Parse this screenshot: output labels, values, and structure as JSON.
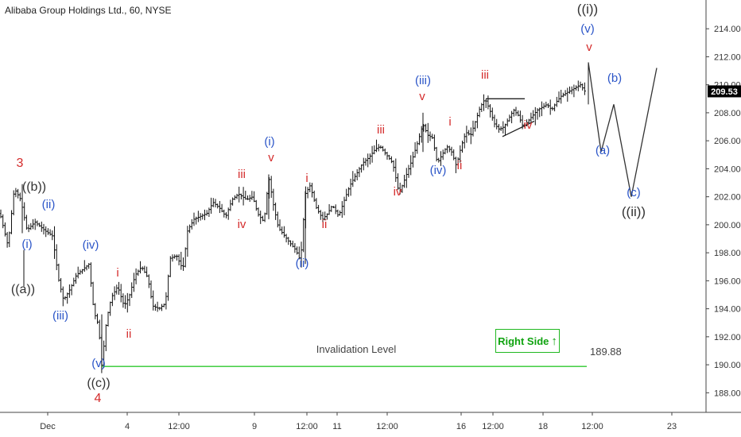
{
  "title": "Alibaba Group Holdings Ltd., 60, NYSE",
  "right_side_label": "Right Side",
  "right_side_arrow": "↑",
  "invalidation_label": "Invalidation Level",
  "invalidation_value_label": "189.88",
  "current_price_label": "209.53",
  "colors": {
    "price": "#000000",
    "invalidation": "#2ec82e",
    "red_labels": "#d42b2b",
    "blue_labels": "#2b55c8",
    "black_labels": "#333333",
    "badge": "#000000",
    "right_side": "#0fa30f"
  },
  "chart_data": {
    "type": "ohlc",
    "y_ticks": [
      "188.00",
      "190.00",
      "192.00",
      "194.00",
      "196.00",
      "198.00",
      "200.00",
      "202.00",
      "204.00",
      "206.00",
      "208.00",
      "210.00",
      "212.00",
      "214.00"
    ],
    "ylim": [
      186.6,
      215.6
    ],
    "x_ticks": [
      "Dec",
      "4",
      "12:00",
      "9",
      "12:00",
      "11",
      "12:00",
      "16",
      "12:00",
      "18",
      "12:00",
      "23"
    ],
    "invalidation_level": 189.88,
    "current_price": 209.53,
    "price_path": [
      [
        0,
        200.8
      ],
      [
        10,
        198.5
      ],
      [
        18,
        202.6
      ],
      [
        26,
        201.8
      ],
      [
        34,
        199.6
      ],
      [
        44,
        200.2
      ],
      [
        56,
        199.6
      ],
      [
        66,
        199.2
      ],
      [
        74,
        196
      ],
      [
        80,
        194.6
      ],
      [
        88,
        195.4
      ],
      [
        96,
        196.4
      ],
      [
        104,
        196.8
      ],
      [
        112,
        197.2
      ],
      [
        118,
        193.8
      ],
      [
        124,
        192.8
      ],
      [
        128,
        189.9
      ],
      [
        134,
        193.2
      ],
      [
        140,
        194.8
      ],
      [
        148,
        195.6
      ],
      [
        156,
        194.2
      ],
      [
        162,
        194.8
      ],
      [
        170,
        196.4
      ],
      [
        178,
        197
      ],
      [
        186,
        196.2
      ],
      [
        192,
        194.2
      ],
      [
        200,
        194
      ],
      [
        208,
        194.4
      ],
      [
        214,
        197.6
      ],
      [
        222,
        197.8
      ],
      [
        230,
        196.8
      ],
      [
        236,
        199.6
      ],
      [
        244,
        200.4
      ],
      [
        252,
        200.6
      ],
      [
        260,
        200.8
      ],
      [
        268,
        201.6
      ],
      [
        276,
        201.2
      ],
      [
        284,
        200.6
      ],
      [
        292,
        201.8
      ],
      [
        300,
        202.2
      ],
      [
        310,
        201.8
      ],
      [
        318,
        202
      ],
      [
        324,
        200.8
      ],
      [
        332,
        200.2
      ],
      [
        338,
        203.4
      ],
      [
        344,
        201.4
      ],
      [
        350,
        199.8
      ],
      [
        358,
        199.2
      ],
      [
        366,
        198.6
      ],
      [
        372,
        198.2
      ],
      [
        378,
        197.4
      ],
      [
        384,
        202.2
      ],
      [
        390,
        202.8
      ],
      [
        398,
        201.2
      ],
      [
        406,
        200.4
      ],
      [
        412,
        200.8
      ],
      [
        418,
        201.4
      ],
      [
        426,
        200.6
      ],
      [
        432,
        201.6
      ],
      [
        440,
        202.8
      ],
      [
        448,
        203.6
      ],
      [
        456,
        204.4
      ],
      [
        464,
        204.8
      ],
      [
        472,
        205.4
      ],
      [
        478,
        205.6
      ],
      [
        486,
        205
      ],
      [
        494,
        204.4
      ],
      [
        502,
        202.2
      ],
      [
        510,
        203.4
      ],
      [
        518,
        204.6
      ],
      [
        526,
        206
      ],
      [
        532,
        207.2
      ],
      [
        538,
        206.4
      ],
      [
        544,
        206.2
      ],
      [
        550,
        204.4
      ],
      [
        556,
        205
      ],
      [
        562,
        205.6
      ],
      [
        568,
        205.2
      ],
      [
        574,
        204.2
      ],
      [
        580,
        205.6
      ],
      [
        586,
        206.6
      ],
      [
        592,
        206.4
      ],
      [
        598,
        207.4
      ],
      [
        604,
        208.4
      ],
      [
        610,
        209
      ],
      [
        616,
        208.2
      ],
      [
        622,
        207.2
      ],
      [
        628,
        206.8
      ],
      [
        634,
        207
      ],
      [
        640,
        207.6
      ],
      [
        646,
        208.2
      ],
      [
        652,
        207.8
      ],
      [
        658,
        207
      ],
      [
        664,
        207.4
      ],
      [
        670,
        207.8
      ],
      [
        676,
        208.2
      ],
      [
        682,
        208.4
      ],
      [
        688,
        208.6
      ],
      [
        694,
        208.2
      ],
      [
        700,
        208.8
      ],
      [
        706,
        209.2
      ],
      [
        712,
        209.4
      ],
      [
        718,
        209.6
      ],
      [
        724,
        209.8
      ],
      [
        730,
        210
      ],
      [
        736,
        209.5
      ]
    ]
  },
  "wave_labels": [
    {
      "text": "3",
      "color": "red"
    },
    {
      "text": "((b))",
      "color": "black"
    },
    {
      "text": "(ii)",
      "color": "blue"
    },
    {
      "text": "(i)",
      "color": "blue"
    },
    {
      "text": "((a))",
      "color": "black"
    },
    {
      "text": "(iii)",
      "color": "blue"
    },
    {
      "text": "(iv)",
      "color": "blue"
    },
    {
      "text": "i",
      "color": "red"
    },
    {
      "text": "ii",
      "color": "red"
    },
    {
      "text": "(v)",
      "color": "blue"
    },
    {
      "text": "((c))",
      "color": "black"
    },
    {
      "text": "4",
      "color": "red"
    },
    {
      "text": "iii",
      "color": "red"
    },
    {
      "text": "iv",
      "color": "red"
    },
    {
      "text": "(i)",
      "color": "blue"
    },
    {
      "text": "v",
      "color": "red"
    },
    {
      "text": "i",
      "color": "red"
    },
    {
      "text": "ii",
      "color": "red"
    },
    {
      "text": "(ii)",
      "color": "blue"
    },
    {
      "text": "iii",
      "color": "red"
    },
    {
      "text": "iv",
      "color": "red"
    },
    {
      "text": "(iii)",
      "color": "blue"
    },
    {
      "text": "v",
      "color": "red"
    },
    {
      "text": "i",
      "color": "red"
    },
    {
      "text": "ii",
      "color": "red"
    },
    {
      "text": "(iv)",
      "color": "blue"
    },
    {
      "text": "iii",
      "color": "red"
    },
    {
      "text": "iv",
      "color": "red"
    },
    {
      "text": "((i))",
      "color": "black"
    },
    {
      "text": "(v)",
      "color": "blue"
    },
    {
      "text": "v",
      "color": "red"
    },
    {
      "text": "(a)",
      "color": "blue"
    },
    {
      "text": "(b)",
      "color": "blue"
    },
    {
      "text": "(c)",
      "color": "blue"
    },
    {
      "text": "((ii))",
      "color": "black"
    }
  ]
}
